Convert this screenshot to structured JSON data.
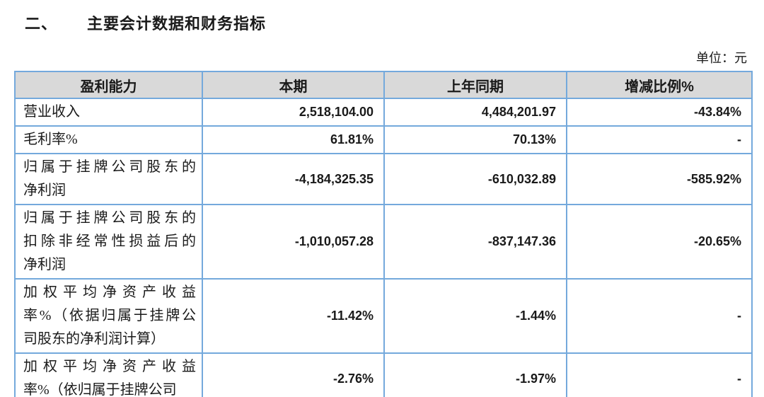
{
  "document": {
    "section_number": "二、",
    "section_title": "主要会计数据和财务指标",
    "unit_label": "单位：元"
  },
  "table": {
    "headers": [
      "盈利能力",
      "本期",
      "上年同期",
      "增减比例%"
    ],
    "rows": [
      {
        "label": "营业收入",
        "current": "2,518,104.00",
        "prior": "4,484,201.97",
        "change": "-43.84%"
      },
      {
        "label": "毛利率%",
        "current": "61.81%",
        "prior": "70.13%",
        "change": "-"
      },
      {
        "label": "归属于挂牌公司股东的\n净利润",
        "current": "-4,184,325.35",
        "prior": "-610,032.89",
        "change": "-585.92%"
      },
      {
        "label": "归属于挂牌公司股东的\n扣除非经常性损益后的\n净利润",
        "current": "-1,010,057.28",
        "prior": "-837,147.36",
        "change": "-20.65%"
      },
      {
        "label": "加权平均净资产收益\n率%（依据归属于挂牌公\n司股东的净利润计算）",
        "current": "-11.42%",
        "prior": "-1.44%",
        "change": "-"
      },
      {
        "label": "加权平均净资产收益\n率%（依归属于挂牌公司",
        "current": "-2.76%",
        "prior": "-1.97%",
        "change": "-"
      }
    ]
  },
  "colors": {
    "table_border": "#74A9DC",
    "header_background": "#D9D9D9",
    "text": "#1A1A1A"
  }
}
